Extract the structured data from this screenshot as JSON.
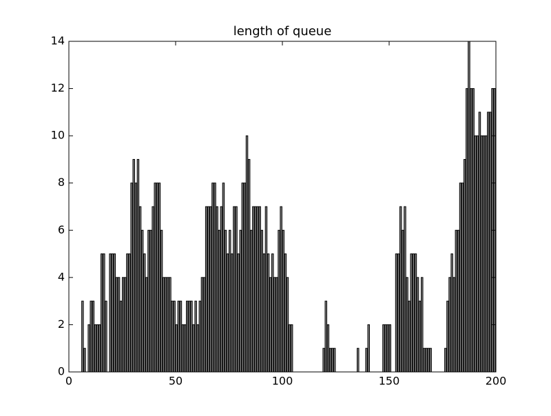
{
  "chart_data": {
    "type": "bar",
    "title": "length of queue",
    "x": [
      0,
      1,
      2,
      3,
      4,
      5,
      6,
      7,
      8,
      9,
      10,
      11,
      12,
      13,
      14,
      15,
      16,
      17,
      18,
      19,
      20,
      21,
      22,
      23,
      24,
      25,
      26,
      27,
      28,
      29,
      30,
      31,
      32,
      33,
      34,
      35,
      36,
      37,
      38,
      39,
      40,
      41,
      42,
      43,
      44,
      45,
      46,
      47,
      48,
      49,
      50,
      51,
      52,
      53,
      54,
      55,
      56,
      57,
      58,
      59,
      60,
      61,
      62,
      63,
      64,
      65,
      66,
      67,
      68,
      69,
      70,
      71,
      72,
      73,
      74,
      75,
      76,
      77,
      78,
      79,
      80,
      81,
      82,
      83,
      84,
      85,
      86,
      87,
      88,
      89,
      90,
      91,
      92,
      93,
      94,
      95,
      96,
      97,
      98,
      99,
      100,
      101,
      102,
      103,
      104,
      105,
      106,
      107,
      108,
      109,
      110,
      111,
      112,
      113,
      114,
      115,
      116,
      117,
      118,
      119,
      120,
      121,
      122,
      123,
      124,
      125,
      126,
      127,
      128,
      129,
      130,
      131,
      132,
      133,
      134,
      135,
      136,
      137,
      138,
      139,
      140,
      141,
      142,
      143,
      144,
      145,
      146,
      147,
      148,
      149,
      150,
      151,
      152,
      153,
      154,
      155,
      156,
      157,
      158,
      159,
      160,
      161,
      162,
      163,
      164,
      165,
      166,
      167,
      168,
      169,
      170,
      171,
      172,
      173,
      174,
      175,
      176,
      177,
      178,
      179,
      180,
      181,
      182,
      183,
      184,
      185,
      186,
      187,
      188,
      189,
      190,
      191,
      192,
      193,
      194,
      195,
      196,
      197,
      198,
      199
    ],
    "values": [
      0,
      0,
      0,
      0,
      0,
      0,
      3,
      1,
      0,
      2,
      3,
      3,
      2,
      2,
      2,
      5,
      5,
      3,
      0,
      5,
      5,
      5,
      4,
      4,
      3,
      4,
      4,
      5,
      5,
      8,
      9,
      8,
      9,
      7,
      6,
      5,
      4,
      6,
      6,
      7,
      8,
      8,
      8,
      6,
      4,
      4,
      4,
      4,
      3,
      3,
      2,
      3,
      3,
      2,
      2,
      3,
      3,
      3,
      2,
      3,
      2,
      3,
      4,
      4,
      7,
      7,
      7,
      8,
      8,
      7,
      6,
      7,
      8,
      6,
      5,
      6,
      5,
      7,
      7,
      5,
      6,
      8,
      8,
      10,
      9,
      6,
      7,
      7,
      7,
      7,
      6,
      5,
      7,
      5,
      4,
      5,
      4,
      4,
      6,
      7,
      6,
      5,
      4,
      2,
      2,
      0,
      0,
      0,
      0,
      0,
      0,
      0,
      0,
      0,
      0,
      0,
      0,
      0,
      0,
      1,
      3,
      2,
      1,
      1,
      1,
      0,
      0,
      0,
      0,
      0,
      0,
      0,
      0,
      0,
      0,
      1,
      0,
      0,
      0,
      1,
      2,
      0,
      0,
      0,
      0,
      0,
      0,
      2,
      2,
      2,
      2,
      0,
      0,
      5,
      5,
      7,
      6,
      7,
      4,
      3,
      5,
      5,
      5,
      4,
      3,
      4,
      1,
      1,
      1,
      1,
      0,
      0,
      0,
      0,
      0,
      0,
      1,
      3,
      4,
      5,
      4,
      6,
      6,
      8,
      8,
      9,
      12,
      14,
      12,
      12,
      10,
      10,
      11,
      10,
      10,
      10,
      11,
      11,
      12,
      12
    ],
    "bar_width": 0.8,
    "color": "#808080",
    "edgecolor": "#000000",
    "xlim": [
      0,
      200
    ],
    "xticks": [
      0,
      50,
      100,
      150,
      200
    ],
    "ylim": [
      0,
      14
    ],
    "yticks": [
      0,
      2,
      4,
      6,
      8,
      10,
      12,
      14
    ]
  }
}
